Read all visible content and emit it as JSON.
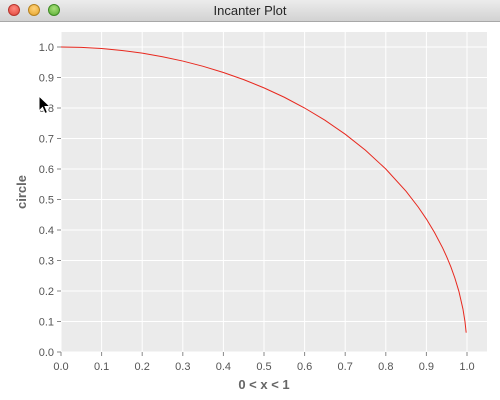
{
  "window": {
    "title": "Incanter Plot"
  },
  "colors": {
    "plot_background": "#ebebeb",
    "grid": "#ffffff",
    "series": "#e8281e"
  },
  "chart_data": {
    "type": "line",
    "xlabel": "0 < x < 1",
    "ylabel": "circle",
    "xlim": [
      0.0,
      1.0
    ],
    "ylim": [
      0.0,
      1.0
    ],
    "xticks": [
      "0.0",
      "0.1",
      "0.2",
      "0.3",
      "0.4",
      "0.5",
      "0.6",
      "0.7",
      "0.8",
      "0.9",
      "1.0"
    ],
    "yticks": [
      "0.0",
      "0.1",
      "0.2",
      "0.3",
      "0.4",
      "0.5",
      "0.6",
      "0.7",
      "0.8",
      "0.9",
      "1.0"
    ],
    "grid": true,
    "legend": "none",
    "series": [
      {
        "x": [
          0.0,
          0.05,
          0.1,
          0.15,
          0.2,
          0.25,
          0.3,
          0.35,
          0.4,
          0.45,
          0.5,
          0.55,
          0.6,
          0.65,
          0.7,
          0.75,
          0.8,
          0.85,
          0.88,
          0.9,
          0.92,
          0.94,
          0.95,
          0.96,
          0.97,
          0.98,
          0.99,
          0.995,
          0.998
        ],
        "y": [
          1.0,
          0.9987,
          0.995,
          0.9887,
          0.9798,
          0.9682,
          0.9539,
          0.9367,
          0.9165,
          0.893,
          0.866,
          0.8352,
          0.8,
          0.7599,
          0.7141,
          0.6614,
          0.6,
          0.5268,
          0.475,
          0.4359,
          0.3919,
          0.3412,
          0.3122,
          0.28,
          0.2431,
          0.199,
          0.1411,
          0.0999,
          0.0632
        ]
      }
    ]
  }
}
